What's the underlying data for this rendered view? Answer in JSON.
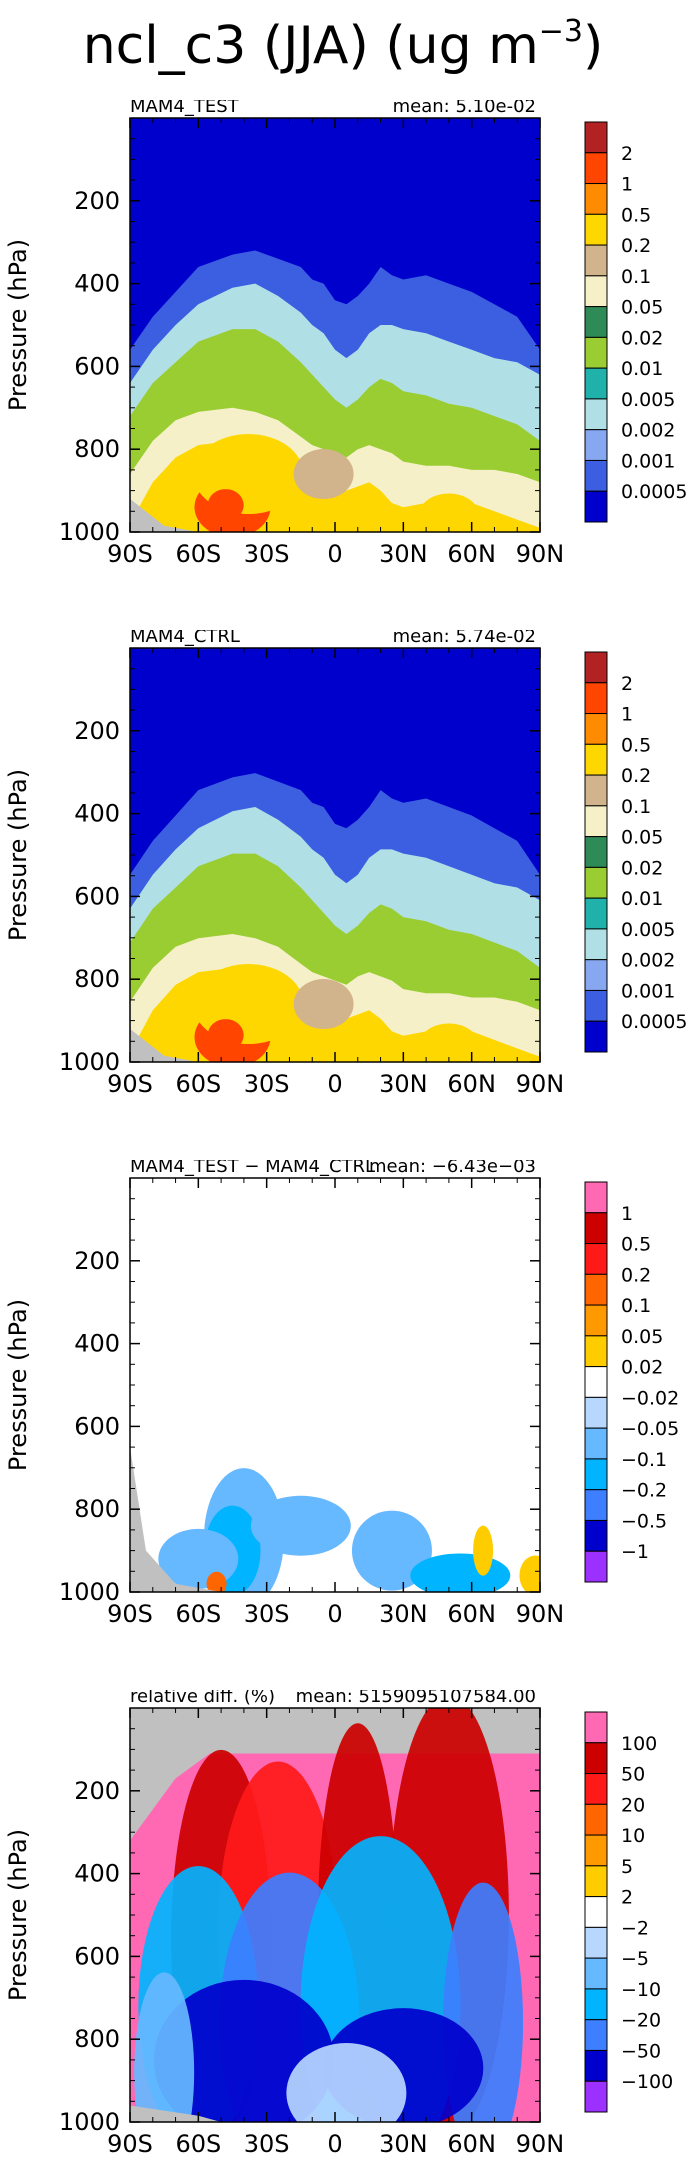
{
  "figure": {
    "title_prefix": "ncl_c3 (JJA) (ug m",
    "title_exp": "−3",
    "title_suffix": ")"
  },
  "chart_data": [
    {
      "type": "heatmap",
      "title": "MAM4_TEST",
      "mean_text": "mean: 5.10e-02",
      "ylabel": "Pressure (hPa)",
      "x_ticks": [
        "90S",
        "60S",
        "30S",
        "0",
        "30N",
        "60N",
        "90N"
      ],
      "y_ticks": [
        "200",
        "400",
        "600",
        "800",
        "1000"
      ],
      "xlim": [
        -90,
        90
      ],
      "ylim": [
        1000,
        0
      ],
      "legend_levels": [
        "2",
        "1",
        "0.5",
        "0.2",
        "0.1",
        "0.05",
        "0.02",
        "0.01",
        "0.005",
        "0.002",
        "0.001",
        "0.0005"
      ],
      "colors": [
        "#b22222",
        "#ff4500",
        "#ff8c00",
        "#ffd700",
        "#d2b48c",
        "#f5f0c8",
        "#2e8b57",
        "#9acd32",
        "#20b2aa",
        "#b0e0e6",
        "#87a8f0",
        "#3b5fe0",
        "#0000cd"
      ],
      "levels_y": [
        {
          "value": "0.0005",
          "boundary": [
            [
              -90,
              560
            ],
            [
              -80,
              480
            ],
            [
              -70,
              420
            ],
            [
              -60,
              360
            ],
            [
              -45,
              330
            ],
            [
              -35,
              320
            ],
            [
              -25,
              340
            ],
            [
              -15,
              360
            ],
            [
              -10,
              390
            ],
            [
              -5,
              400
            ],
            [
              0,
              440
            ],
            [
              5,
              450
            ],
            [
              10,
              430
            ],
            [
              15,
              400
            ],
            [
              20,
              360
            ],
            [
              25,
              380
            ],
            [
              30,
              390
            ],
            [
              40,
              380
            ],
            [
              50,
              400
            ],
            [
              60,
              420
            ],
            [
              70,
              450
            ],
            [
              80,
              480
            ],
            [
              90,
              560
            ]
          ]
        },
        {
          "value": "0.002",
          "boundary": [
            [
              -90,
              640
            ],
            [
              -80,
              560
            ],
            [
              -70,
              500
            ],
            [
              -60,
              450
            ],
            [
              -45,
              410
            ],
            [
              -35,
              400
            ],
            [
              -25,
              430
            ],
            [
              -15,
              470
            ],
            [
              -10,
              500
            ],
            [
              -5,
              520
            ],
            [
              0,
              560
            ],
            [
              5,
              580
            ],
            [
              10,
              560
            ],
            [
              15,
              520
            ],
            [
              20,
              500
            ],
            [
              25,
              500
            ],
            [
              30,
              510
            ],
            [
              40,
              520
            ],
            [
              50,
              540
            ],
            [
              60,
              560
            ],
            [
              70,
              580
            ],
            [
              80,
              590
            ],
            [
              90,
              620
            ]
          ]
        },
        {
          "value": "0.01",
          "boundary": [
            [
              -90,
              720
            ],
            [
              -80,
              640
            ],
            [
              -70,
              590
            ],
            [
              -60,
              540
            ],
            [
              -45,
              510
            ],
            [
              -35,
              510
            ],
            [
              -25,
              540
            ],
            [
              -15,
              590
            ],
            [
              -10,
              620
            ],
            [
              -5,
              650
            ],
            [
              0,
              680
            ],
            [
              5,
              700
            ],
            [
              10,
              680
            ],
            [
              15,
              650
            ],
            [
              20,
              630
            ],
            [
              25,
              640
            ],
            [
              30,
              660
            ],
            [
              40,
              670
            ],
            [
              50,
              690
            ],
            [
              60,
              700
            ],
            [
              70,
              720
            ],
            [
              80,
              740
            ],
            [
              90,
              780
            ]
          ]
        },
        {
          "value": "0.05",
          "boundary": [
            [
              -90,
              860
            ],
            [
              -80,
              780
            ],
            [
              -70,
              730
            ],
            [
              -60,
              710
            ],
            [
              -45,
              700
            ],
            [
              -35,
              710
            ],
            [
              -25,
              730
            ],
            [
              -15,
              770
            ],
            [
              -10,
              790
            ],
            [
              -5,
              800
            ],
            [
              0,
              810
            ],
            [
              5,
              820
            ],
            [
              10,
              800
            ],
            [
              15,
              790
            ],
            [
              20,
              800
            ],
            [
              25,
              810
            ],
            [
              30,
              830
            ],
            [
              40,
              840
            ],
            [
              50,
              840
            ],
            [
              60,
              850
            ],
            [
              70,
              850
            ],
            [
              80,
              860
            ],
            [
              90,
              880
            ]
          ]
        },
        {
          "value": "0.2",
          "boundary": [
            [
              -90,
              980
            ],
            [
              -80,
              880
            ],
            [
              -70,
              820
            ],
            [
              -60,
              790
            ],
            [
              -45,
              780
            ],
            [
              -35,
              790
            ],
            [
              -25,
              810
            ],
            [
              -15,
              840
            ],
            [
              -10,
              860
            ],
            [
              -5,
              880
            ],
            [
              0,
              900
            ],
            [
              5,
              900
            ],
            [
              10,
              890
            ],
            [
              15,
              880
            ],
            [
              20,
              900
            ],
            [
              25,
              930
            ],
            [
              30,
              940
            ],
            [
              40,
              930
            ],
            [
              50,
              920
            ],
            [
              60,
              930
            ],
            [
              70,
              950
            ],
            [
              80,
              970
            ],
            [
              90,
              990
            ]
          ]
        }
      ]
    },
    {
      "type": "heatmap",
      "title": "MAM4_CTRL",
      "mean_text": "mean: 5.74e-02",
      "ylabel": "Pressure (hPa)",
      "x_ticks": [
        "90S",
        "60S",
        "30S",
        "0",
        "30N",
        "60N",
        "90N"
      ],
      "y_ticks": [
        "200",
        "400",
        "600",
        "800",
        "1000"
      ],
      "xlim": [
        -90,
        90
      ],
      "ylim": [
        1000,
        0
      ],
      "legend_levels": [
        "2",
        "1",
        "0.5",
        "0.2",
        "0.1",
        "0.05",
        "0.02",
        "0.01",
        "0.005",
        "0.002",
        "0.001",
        "0.0005"
      ],
      "colors": [
        "#b22222",
        "#ff4500",
        "#ff8c00",
        "#ffd700",
        "#d2b48c",
        "#f5f0c8",
        "#2e8b57",
        "#9acd32",
        "#20b2aa",
        "#b0e0e6",
        "#87a8f0",
        "#3b5fe0",
        "#0000cd"
      ]
    },
    {
      "type": "heatmap",
      "title": "MAM4_TEST − MAM4_CTRL",
      "mean_text": "mean: −6.43e−03",
      "ylabel": "Pressure (hPa)",
      "x_ticks": [
        "90S",
        "60S",
        "30S",
        "0",
        "30N",
        "60N",
        "90N"
      ],
      "y_ticks": [
        "200",
        "400",
        "600",
        "800",
        "1000"
      ],
      "xlim": [
        -90,
        90
      ],
      "ylim": [
        1000,
        0
      ],
      "legend_levels": [
        "1",
        "0.5",
        "0.2",
        "0.1",
        "0.05",
        "0.02",
        "−0.02",
        "−0.05",
        "−0.1",
        "−0.2",
        "−0.5",
        "−1"
      ],
      "colors": [
        "#ff69b4",
        "#cc0000",
        "#ff1a1a",
        "#ff6600",
        "#ff9900",
        "#ffcc00",
        "#ffffff",
        "#b7d7ff",
        "#66b8ff",
        "#00b4ff",
        "#3d7fff",
        "#0000cc",
        "#9b30ff"
      ]
    },
    {
      "type": "heatmap",
      "title": "relative diff. (%)",
      "mean_text": "mean: 5159095107584.00",
      "ylabel": "Pressure (hPa)",
      "x_ticks": [
        "90S",
        "60S",
        "30S",
        "0",
        "30N",
        "60N",
        "90N"
      ],
      "y_ticks": [
        "200",
        "400",
        "600",
        "800",
        "1000"
      ],
      "xlim": [
        -90,
        90
      ],
      "ylim": [
        1000,
        0
      ],
      "legend_levels": [
        "100",
        "50",
        "20",
        "10",
        "5",
        "2",
        "−2",
        "−5",
        "−10",
        "−20",
        "−50",
        "−100"
      ],
      "colors": [
        "#ff69b4",
        "#cc0000",
        "#ff1a1a",
        "#ff6600",
        "#ff9900",
        "#ffcc00",
        "#ffffff",
        "#b7d7ff",
        "#66b8ff",
        "#00b4ff",
        "#3d7fff",
        "#0000cc",
        "#9b30ff"
      ]
    }
  ]
}
